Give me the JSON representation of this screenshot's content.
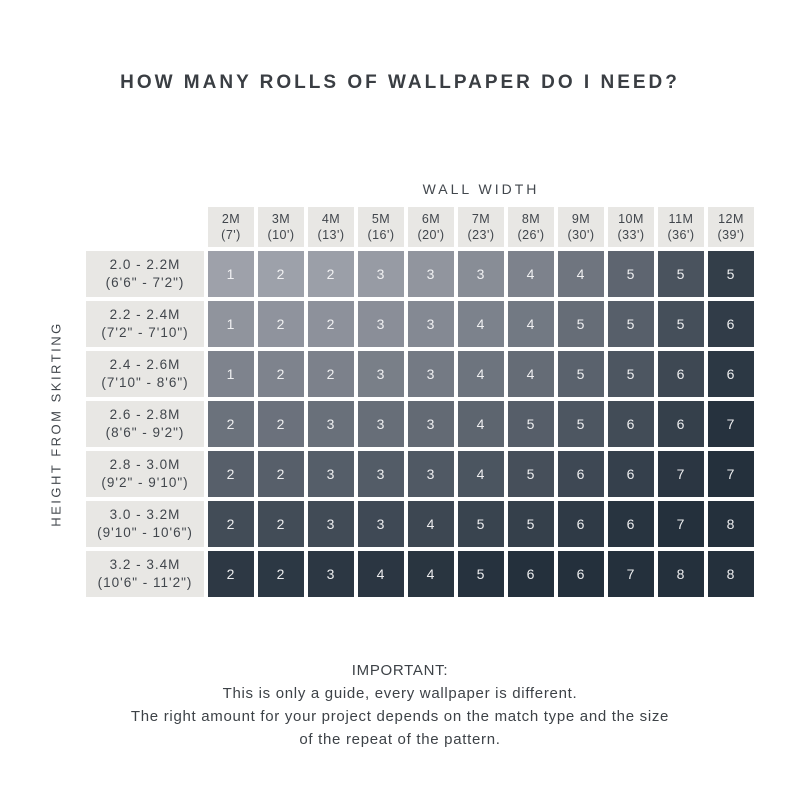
{
  "title": "HOW MANY ROLLS OF WALLPAPER DO I NEED?",
  "chart_data": {
    "type": "heatmap",
    "x_axis_label": "WALL WIDTH",
    "y_axis_label": "HEIGHT FROM SKIRTING",
    "columns": [
      {
        "meters": "2M",
        "feet": "(7')"
      },
      {
        "meters": "3M",
        "feet": "(10')"
      },
      {
        "meters": "4M",
        "feet": "(13')"
      },
      {
        "meters": "5M",
        "feet": "(16')"
      },
      {
        "meters": "6M",
        "feet": "(20')"
      },
      {
        "meters": "7M",
        "feet": "(23')"
      },
      {
        "meters": "8M",
        "feet": "(26')"
      },
      {
        "meters": "9M",
        "feet": "(30')"
      },
      {
        "meters": "10M",
        "feet": "(33')"
      },
      {
        "meters": "11M",
        "feet": "(36')"
      },
      {
        "meters": "12M",
        "feet": "(39')"
      }
    ],
    "rows": [
      {
        "meters": "2.0 - 2.2M",
        "feet": "(6'6\" - 7'2\")"
      },
      {
        "meters": "2.2 - 2.4M",
        "feet": "(7'2\" - 7'10\")"
      },
      {
        "meters": "2.4 - 2.6M",
        "feet": "(7'10\" - 8'6\")"
      },
      {
        "meters": "2.6 - 2.8M",
        "feet": "(8'6\" - 9'2\")"
      },
      {
        "meters": "2.8 - 3.0M",
        "feet": "(9'2\" - 9'10\")"
      },
      {
        "meters": "3.0 - 3.2M",
        "feet": "(9'10\" - 10'6\")"
      },
      {
        "meters": "3.2 - 3.4M",
        "feet": "(10'6\" - 11'2\")"
      }
    ],
    "values": [
      [
        1,
        2,
        2,
        3,
        3,
        3,
        4,
        4,
        5,
        5,
        5
      ],
      [
        1,
        2,
        2,
        3,
        3,
        4,
        4,
        5,
        5,
        5,
        6
      ],
      [
        1,
        2,
        2,
        3,
        3,
        4,
        4,
        5,
        5,
        6,
        6
      ],
      [
        2,
        2,
        3,
        3,
        3,
        4,
        5,
        5,
        6,
        6,
        7
      ],
      [
        2,
        2,
        3,
        3,
        3,
        4,
        5,
        6,
        6,
        7,
        7
      ],
      [
        2,
        2,
        3,
        3,
        4,
        5,
        5,
        6,
        6,
        7,
        8
      ],
      [
        2,
        2,
        3,
        4,
        4,
        5,
        6,
        6,
        7,
        8,
        8
      ]
    ],
    "colors": {
      "cell_light": "#9EA1AA",
      "cell_dark": "#24303C",
      "header_bg": "#E8E7E4",
      "header_text": "#41464C",
      "value_text": "#F5F6F7",
      "title_text": "#3A3E43"
    },
    "legend": "none",
    "grid": "white gaps between cells"
  },
  "footer": {
    "heading": "IMPORTANT:",
    "line1": "This is only a guide, every wallpaper is different.",
    "line2": "The right amount for your project depends on the match type and the size",
    "line3": "of the repeat of the pattern."
  }
}
